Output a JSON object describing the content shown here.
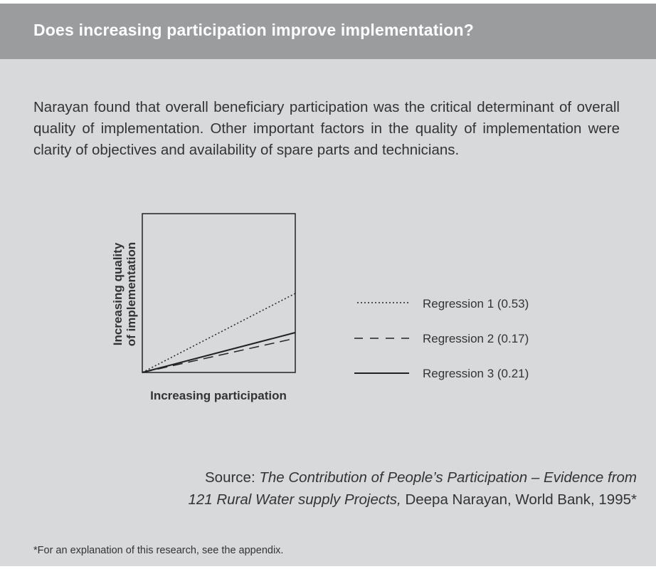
{
  "header": {
    "title": "Does increasing participation improve implementation?"
  },
  "body": {
    "paragraph": "Narayan found that overall beneficiary participation was the critical determinant of overall quality of implementation. Other important factors in the quality of implementation were clarity of objectives and availability of spare parts and technicians."
  },
  "figure": {
    "y_axis_label": [
      "Increasing quality",
      "of implementation"
    ],
    "x_axis_label": "Increasing participation",
    "legend": [
      "Regression 1 (0.53)",
      "Regression 2 (0.17)",
      "Regression 3 (0.21)"
    ]
  },
  "source": {
    "label": "Source:",
    "title_lines": [
      "The Contribution of People’s Participation – Evidence from",
      "121 Rural Water supply Projects,"
    ],
    "details": "Deepa Narayan, World Bank, 1995*"
  },
  "footnote": "*For an explanation of this research, see the appendix."
}
